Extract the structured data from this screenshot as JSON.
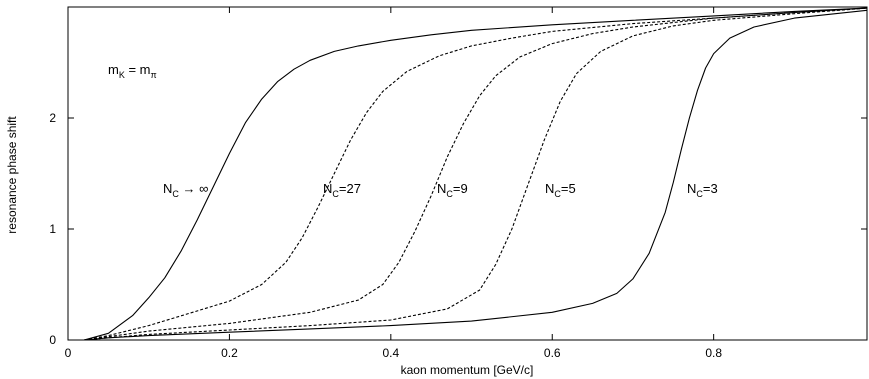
{
  "chart_data": {
    "type": "line",
    "xlabel": "kaon momentum [GeV/c]",
    "ylabel": "resonance phase shift",
    "xlim": [
      0,
      0.99
    ],
    "ylim": [
      0,
      3.0
    ],
    "x_ticks": [
      "0",
      "0.2",
      "0.4",
      "0.6",
      "0.8"
    ],
    "y_ticks": [
      "0",
      "1",
      "2"
    ],
    "annotation": {
      "main": "m",
      "sub1": "K",
      "eq": " = m",
      "sub2": "π"
    },
    "grid": false,
    "legend": "none",
    "series": [
      {
        "name": "NC → ∞",
        "style": "solid",
        "label_parts": {
          "main": "N",
          "sub": "C",
          "rest": " → ∞"
        },
        "x": [
          0.02,
          0.05,
          0.08,
          0.1,
          0.12,
          0.14,
          0.16,
          0.18,
          0.2,
          0.22,
          0.24,
          0.26,
          0.28,
          0.3,
          0.33,
          0.36,
          0.4,
          0.45,
          0.5,
          0.6,
          0.7,
          0.8,
          0.9,
          0.99
        ],
        "y": [
          0.0,
          0.06,
          0.22,
          0.38,
          0.56,
          0.8,
          1.08,
          1.38,
          1.68,
          1.96,
          2.17,
          2.33,
          2.44,
          2.52,
          2.6,
          2.65,
          2.7,
          2.75,
          2.79,
          2.84,
          2.88,
          2.92,
          2.96,
          2.99
        ]
      },
      {
        "name": "NC=27",
        "style": "dashed",
        "label_parts": {
          "main": "N",
          "sub": "C",
          "rest": "=27"
        },
        "x": [
          0.02,
          0.05,
          0.1,
          0.15,
          0.2,
          0.24,
          0.27,
          0.29,
          0.31,
          0.33,
          0.35,
          0.37,
          0.39,
          0.42,
          0.46,
          0.5,
          0.55,
          0.6,
          0.7,
          0.8,
          0.9,
          0.99
        ],
        "y": [
          0.0,
          0.04,
          0.13,
          0.24,
          0.35,
          0.5,
          0.7,
          0.92,
          1.2,
          1.5,
          1.8,
          2.05,
          2.24,
          2.42,
          2.56,
          2.65,
          2.72,
          2.78,
          2.85,
          2.9,
          2.95,
          2.99
        ]
      },
      {
        "name": "NC=9",
        "style": "dashed",
        "label_parts": {
          "main": "N",
          "sub": "C",
          "rest": "=9"
        },
        "x": [
          0.02,
          0.05,
          0.1,
          0.2,
          0.3,
          0.36,
          0.39,
          0.41,
          0.43,
          0.45,
          0.47,
          0.49,
          0.51,
          0.53,
          0.56,
          0.6,
          0.65,
          0.7,
          0.8,
          0.9,
          0.99
        ],
        "y": [
          0.0,
          0.03,
          0.08,
          0.15,
          0.25,
          0.36,
          0.5,
          0.7,
          0.98,
          1.3,
          1.65,
          1.95,
          2.2,
          2.38,
          2.55,
          2.67,
          2.76,
          2.82,
          2.9,
          2.95,
          2.99
        ]
      },
      {
        "name": "NC=5",
        "style": "dashed",
        "label_parts": {
          "main": "N",
          "sub": "C",
          "rest": "=5"
        },
        "x": [
          0.02,
          0.05,
          0.1,
          0.2,
          0.3,
          0.4,
          0.47,
          0.51,
          0.53,
          0.55,
          0.57,
          0.59,
          0.61,
          0.63,
          0.66,
          0.7,
          0.75,
          0.8,
          0.9,
          0.99
        ],
        "y": [
          0.0,
          0.02,
          0.05,
          0.09,
          0.13,
          0.18,
          0.28,
          0.45,
          0.68,
          1.0,
          1.4,
          1.8,
          2.15,
          2.4,
          2.6,
          2.74,
          2.83,
          2.88,
          2.94,
          2.99
        ]
      },
      {
        "name": "NC=3",
        "style": "solid",
        "label_parts": {
          "main": "N",
          "sub": "C",
          "rest": "=3"
        },
        "x": [
          0.02,
          0.05,
          0.1,
          0.2,
          0.3,
          0.4,
          0.5,
          0.6,
          0.65,
          0.68,
          0.7,
          0.72,
          0.74,
          0.75,
          0.76,
          0.77,
          0.78,
          0.79,
          0.8,
          0.82,
          0.85,
          0.9,
          0.99
        ],
        "y": [
          0.0,
          0.02,
          0.04,
          0.07,
          0.1,
          0.13,
          0.17,
          0.25,
          0.33,
          0.42,
          0.55,
          0.78,
          1.15,
          1.42,
          1.72,
          2.0,
          2.25,
          2.45,
          2.58,
          2.72,
          2.82,
          2.9,
          2.97
        ]
      }
    ]
  }
}
